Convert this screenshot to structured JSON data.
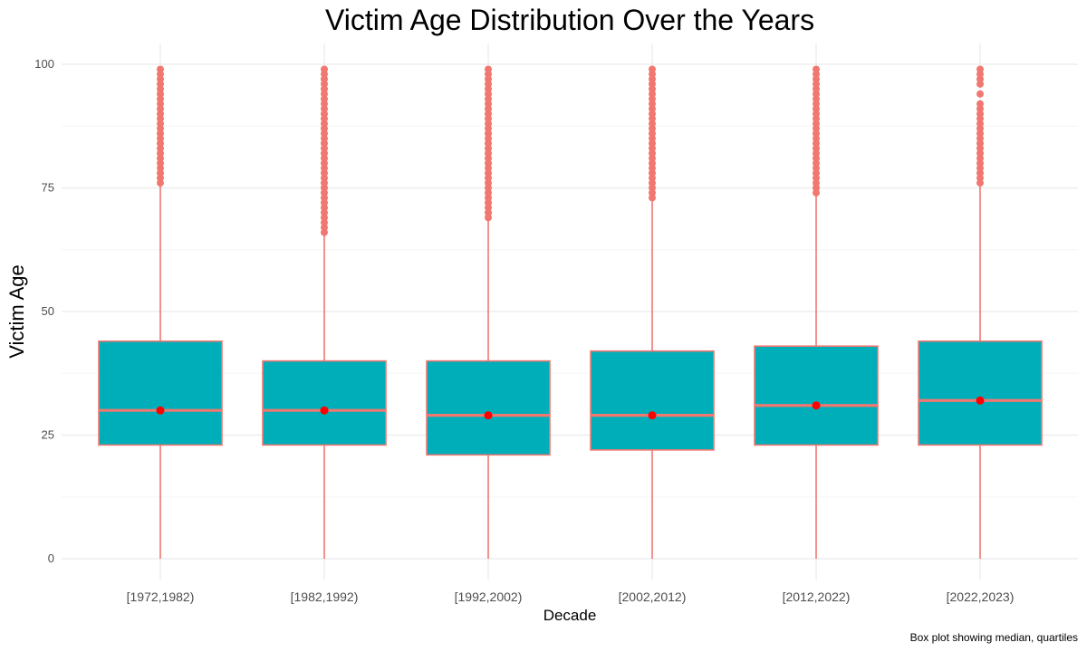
{
  "chart_data": {
    "type": "box",
    "title": "Victim Age Distribution Over the Years",
    "xlabel": "Decade",
    "ylabel": "Victim Age",
    "caption": "Box plot showing median, quartiles",
    "ylim": [
      -4,
      104
    ],
    "yticks": [
      0,
      25,
      50,
      75,
      100
    ],
    "grid": true,
    "colors": {
      "box_fill": "#00AEBA",
      "box_outline": "#F07870",
      "whisker": "#F07870",
      "outlier": "#F07870",
      "mean_point": "#FF0000",
      "grid_major": "#EBEBEB",
      "grid_minor": "#F5F5F5"
    },
    "categories": [
      "[1972,1982)",
      "[1982,1992)",
      "[1992,2002)",
      "[2002,2012)",
      "[2012,2022)",
      "[2022,2023)"
    ],
    "boxes": [
      {
        "category": "[1972,1982)",
        "min": 0,
        "q1": 23,
        "median": 30,
        "q3": 44,
        "max": 76,
        "mean": 30,
        "outliers": [
          76,
          77,
          78,
          79,
          80,
          81,
          82,
          83,
          84,
          85,
          86,
          87,
          88,
          89,
          90,
          91,
          92,
          93,
          94,
          95,
          96,
          97,
          98,
          99
        ]
      },
      {
        "category": "[1982,1992)",
        "min": 0,
        "q1": 23,
        "median": 30,
        "q3": 40,
        "max": 66,
        "mean": 30,
        "outliers": [
          66,
          67,
          68,
          69,
          70,
          71,
          72,
          73,
          74,
          75,
          76,
          77,
          78,
          79,
          80,
          81,
          82,
          83,
          84,
          85,
          86,
          87,
          88,
          89,
          90,
          91,
          92,
          93,
          94,
          95,
          96,
          97,
          98,
          99
        ]
      },
      {
        "category": "[1992,2002)",
        "min": 0,
        "q1": 21,
        "median": 29,
        "q3": 40,
        "max": 69,
        "mean": 29,
        "outliers": [
          69,
          70,
          71,
          72,
          73,
          74,
          75,
          76,
          77,
          78,
          79,
          80,
          81,
          82,
          83,
          84,
          85,
          86,
          87,
          88,
          89,
          90,
          91,
          92,
          93,
          94,
          95,
          96,
          97,
          98,
          99
        ]
      },
      {
        "category": "[2002,2012)",
        "min": 0,
        "q1": 22,
        "median": 29,
        "q3": 42,
        "max": 73,
        "mean": 29,
        "outliers": [
          73,
          74,
          75,
          76,
          77,
          78,
          79,
          80,
          81,
          82,
          83,
          84,
          85,
          86,
          87,
          88,
          89,
          90,
          91,
          92,
          93,
          94,
          95,
          96,
          97,
          98,
          99
        ]
      },
      {
        "category": "[2012,2022)",
        "min": 0,
        "q1": 23,
        "median": 31,
        "q3": 43,
        "max": 74,
        "mean": 31,
        "outliers": [
          74,
          75,
          76,
          77,
          78,
          79,
          80,
          81,
          82,
          83,
          84,
          85,
          86,
          87,
          88,
          89,
          90,
          91,
          92,
          93,
          94,
          95,
          96,
          97,
          98,
          99
        ]
      },
      {
        "category": "[2022,2023)",
        "min": 0,
        "q1": 23,
        "median": 32,
        "q3": 44,
        "max": 76,
        "mean": 32,
        "outliers": [
          76,
          77,
          78,
          79,
          80,
          81,
          82,
          83,
          84,
          85,
          86,
          87,
          88,
          89,
          90,
          91,
          92,
          94,
          96,
          97,
          98,
          99
        ]
      }
    ]
  }
}
